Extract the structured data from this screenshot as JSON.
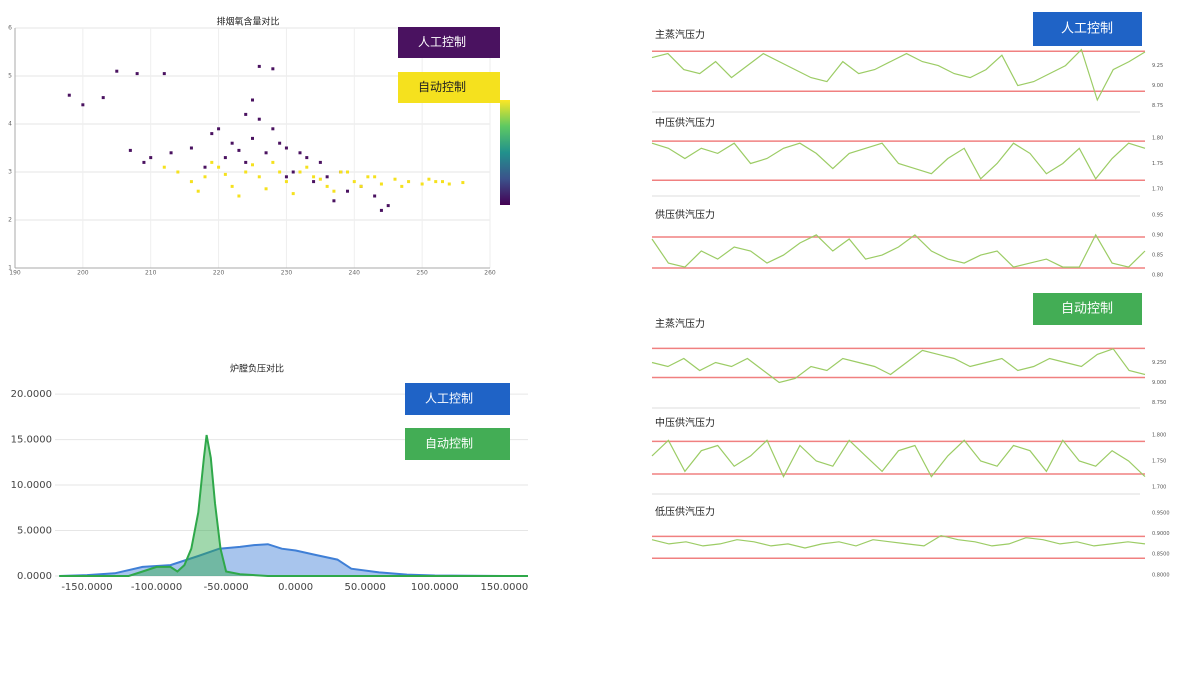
{
  "panel_labels": [
    "人工控制",
    "自动控制"
  ],
  "chart_data": [
    {
      "type": "scatter",
      "title": "排烟氧含量对比",
      "xlim": [
        190,
        260
      ],
      "xticks": [
        190,
        200,
        210,
        220,
        230,
        240,
        250,
        260
      ],
      "ylim": [
        1,
        6
      ],
      "yticks": [
        1,
        2,
        3,
        4,
        5,
        6
      ],
      "grid": true,
      "series": [
        {
          "name": "人工控制",
          "color": "#4a1260",
          "x": [
            198,
            200,
            203,
            205,
            208,
            212,
            226,
            228,
            224,
            219,
            216,
            220,
            222,
            225,
            227,
            230,
            233,
            235,
            238,
            241,
            243,
            244,
            218,
            221,
            224,
            229,
            232,
            236,
            239,
            228,
            226,
            223,
            231,
            234,
            237,
            213,
            210,
            207,
            209,
            245,
            230,
            225
          ],
          "values": [
            4.6,
            4.4,
            4.55,
            5.1,
            5.05,
            5.05,
            5.2,
            5.15,
            4.2,
            3.8,
            3.5,
            3.9,
            3.6,
            3.7,
            3.4,
            3.5,
            3.3,
            3.2,
            3.0,
            2.7,
            2.5,
            2.2,
            3.1,
            3.3,
            3.2,
            3.6,
            3.4,
            2.9,
            2.6,
            3.9,
            4.1,
            3.45,
            3.0,
            2.8,
            2.4,
            3.4,
            3.3,
            3.45,
            3.2,
            2.3,
            2.9,
            4.5
          ]
        },
        {
          "name": "自动控制",
          "color": "#f5e11e",
          "x": [
            212,
            214,
            216,
            218,
            220,
            222,
            224,
            226,
            228,
            230,
            232,
            234,
            236,
            238,
            240,
            242,
            244,
            246,
            248,
            250,
            252,
            254,
            256,
            217,
            219,
            221,
            223,
            225,
            227,
            229,
            231,
            233,
            235,
            237,
            239,
            241,
            243,
            247,
            251,
            253
          ],
          "values": [
            3.1,
            3.0,
            2.8,
            2.9,
            3.1,
            2.7,
            3.0,
            2.9,
            3.2,
            2.8,
            3.0,
            2.9,
            2.7,
            3.0,
            2.8,
            2.9,
            2.75,
            2.85,
            2.8,
            2.75,
            2.8,
            2.75,
            2.78,
            2.6,
            3.2,
            2.95,
            2.5,
            3.15,
            2.65,
            3.0,
            2.55,
            3.1,
            2.85,
            2.6,
            3.0,
            2.7,
            2.9,
            2.7,
            2.85,
            2.8
          ]
        }
      ]
    },
    {
      "type": "area",
      "title": "炉膛负压对比",
      "xlim": [
        -173,
        167
      ],
      "xticks": [
        {
          "value": -150,
          "label": "-150.0000"
        },
        {
          "value": -100,
          "label": "-100.0000"
        },
        {
          "value": -50,
          "label": "-50.0000"
        },
        {
          "value": 0,
          "label": "0.0000"
        },
        {
          "value": 50,
          "label": "50.0000"
        },
        {
          "value": 100,
          "label": "100.0000"
        },
        {
          "value": 150,
          "label": "150.0000"
        }
      ],
      "ylim": [
        0,
        21
      ],
      "yticks": [
        {
          "value": 0,
          "label": "0.0000"
        },
        {
          "value": 5,
          "label": "5.0000"
        },
        {
          "value": 10,
          "label": "10.0000"
        },
        {
          "value": 15,
          "label": "15.0000"
        },
        {
          "value": 20,
          "label": "20.0000"
        }
      ],
      "grid": true,
      "series": [
        {
          "name": "人工控制",
          "color": "#3f7fd6",
          "x": [
            -170,
            -150,
            -130,
            -110,
            -90,
            -70,
            -55,
            -40,
            -30,
            -20,
            -10,
            0,
            15,
            30,
            40,
            60,
            80,
            100,
            150,
            167
          ],
          "values": [
            0,
            0.1,
            0.3,
            1,
            1.2,
            2.2,
            3,
            3.2,
            3.4,
            3.5,
            3,
            2.8,
            2.3,
            1.8,
            0.8,
            0.4,
            0.15,
            0.05,
            0,
            0
          ]
        },
        {
          "name": "自动控制",
          "color": "#2fa84a",
          "x": [
            -170,
            -120,
            -110,
            -100,
            -90,
            -85,
            -80,
            -75,
            -70,
            -66,
            -64,
            -61,
            -58,
            -54,
            -50,
            -40,
            -20,
            167
          ],
          "values": [
            0,
            0,
            0.5,
            1,
            1,
            0.5,
            1.2,
            3,
            7,
            13,
            15.5,
            13,
            8,
            3,
            0.5,
            0.2,
            0,
            0
          ]
        }
      ]
    },
    {
      "type": "line",
      "title": "主蒸汽压力",
      "color": "#9ccc65",
      "ylim": [
        8.72,
        9.52
      ],
      "yticks": [
        9.25,
        {
          "value": 9,
          "label": "9.00"
        },
        8.75
      ],
      "reference_lines": [
        9.43,
        8.93
      ],
      "reference_color": "#f08080",
      "values": [
        9.35,
        9.4,
        9.2,
        9.15,
        9.3,
        9.1,
        9.25,
        9.4,
        9.3,
        9.2,
        9.1,
        9.05,
        9.3,
        9.15,
        9.2,
        9.3,
        9.4,
        9.3,
        9.25,
        9.15,
        9.1,
        9.2,
        9.38,
        9.0,
        9.05,
        9.15,
        9.25,
        9.45,
        8.82,
        9.2,
        9.3,
        9.42
      ]
    },
    {
      "type": "line",
      "title": "中压供汽压力",
      "color": "#9ccc65",
      "ylim": [
        1.694,
        1.816
      ],
      "yticks": [
        {
          "value": 1.8,
          "label": "1.80"
        },
        1.75,
        {
          "value": 1.7,
          "label": "1.70"
        }
      ],
      "reference_lines": [
        1.794,
        1.717
      ],
      "reference_color": "#f08080",
      "values": [
        1.79,
        1.78,
        1.76,
        1.78,
        1.77,
        1.79,
        1.75,
        1.76,
        1.78,
        1.79,
        1.77,
        1.74,
        1.77,
        1.78,
        1.79,
        1.75,
        1.74,
        1.73,
        1.76,
        1.78,
        1.72,
        1.75,
        1.79,
        1.77,
        1.73,
        1.75,
        1.78,
        1.72,
        1.76,
        1.79,
        1.78
      ]
    },
    {
      "type": "line",
      "title": "供压供汽压力",
      "color": "#9ccc65",
      "ylim": [
        0.798,
        0.957
      ],
      "yticks": [
        0.95,
        {
          "value": 0.9,
          "label": "0.90"
        },
        0.85,
        {
          "value": 0.8,
          "label": "0.80"
        }
      ],
      "reference_lines": [
        0.895,
        0.818
      ],
      "reference_color": "#f08080",
      "values": [
        0.89,
        0.83,
        0.82,
        0.86,
        0.84,
        0.87,
        0.86,
        0.83,
        0.85,
        0.88,
        0.9,
        0.86,
        0.89,
        0.84,
        0.85,
        0.87,
        0.9,
        0.86,
        0.84,
        0.83,
        0.85,
        0.86,
        0.82,
        0.83,
        0.84,
        0.82,
        0.82,
        0.9,
        0.83,
        0.82,
        0.86
      ]
    },
    {
      "type": "line",
      "title": "主蒸汽压力",
      "color": "#9ccc65",
      "ylim": [
        8.72,
        9.53
      ],
      "yticks": [
        {
          "value": 9.25,
          "label": "9.250"
        },
        {
          "value": 9,
          "label": "9.000"
        },
        {
          "value": 8.75,
          "label": "8.750"
        }
      ],
      "reference_lines": [
        9.425,
        9.063
      ],
      "reference_color": "#f08080",
      "values": [
        9.25,
        9.2,
        9.3,
        9.15,
        9.25,
        9.2,
        9.3,
        9.15,
        9.0,
        9.05,
        9.2,
        9.15,
        9.3,
        9.25,
        9.2,
        9.1,
        9.25,
        9.4,
        9.35,
        9.3,
        9.2,
        9.25,
        9.3,
        9.15,
        9.2,
        9.3,
        9.25,
        9.2,
        9.35,
        9.42,
        9.15,
        9.1
      ]
    },
    {
      "type": "line",
      "title": "中压供汽压力",
      "color": "#9ccc65",
      "ylim": [
        1.694,
        1.81
      ],
      "yticks": [
        {
          "value": 1.8,
          "label": "1.800"
        },
        {
          "value": 1.75,
          "label": "1.750"
        },
        {
          "value": 1.7,
          "label": "1.700"
        }
      ],
      "reference_lines": [
        1.788,
        1.725
      ],
      "reference_color": "#f08080",
      "values": [
        1.76,
        1.79,
        1.73,
        1.77,
        1.78,
        1.74,
        1.76,
        1.79,
        1.72,
        1.78,
        1.75,
        1.74,
        1.79,
        1.76,
        1.73,
        1.77,
        1.78,
        1.72,
        1.76,
        1.79,
        1.75,
        1.74,
        1.78,
        1.77,
        1.73,
        1.79,
        1.75,
        1.74,
        1.77,
        1.75,
        1.72
      ]
    },
    {
      "type": "line",
      "title": "低压供汽压力",
      "color": "#9ccc65",
      "ylim": [
        0.797,
        0.962
      ],
      "yticks": [
        {
          "value": 0.95,
          "label": "0.9500"
        },
        {
          "value": 0.9,
          "label": "0.9000"
        },
        {
          "value": 0.85,
          "label": "0.8500"
        },
        {
          "value": 0.8,
          "label": "0.8000"
        }
      ],
      "reference_lines": [
        0.893,
        0.84
      ],
      "reference_color": "#f08080",
      "values": [
        0.885,
        0.875,
        0.88,
        0.87,
        0.875,
        0.885,
        0.88,
        0.87,
        0.875,
        0.865,
        0.875,
        0.88,
        0.87,
        0.885,
        0.88,
        0.875,
        0.87,
        0.895,
        0.885,
        0.88,
        0.87,
        0.875,
        0.89,
        0.885,
        0.875,
        0.88,
        0.87,
        0.875,
        0.88,
        0.875
      ]
    }
  ]
}
